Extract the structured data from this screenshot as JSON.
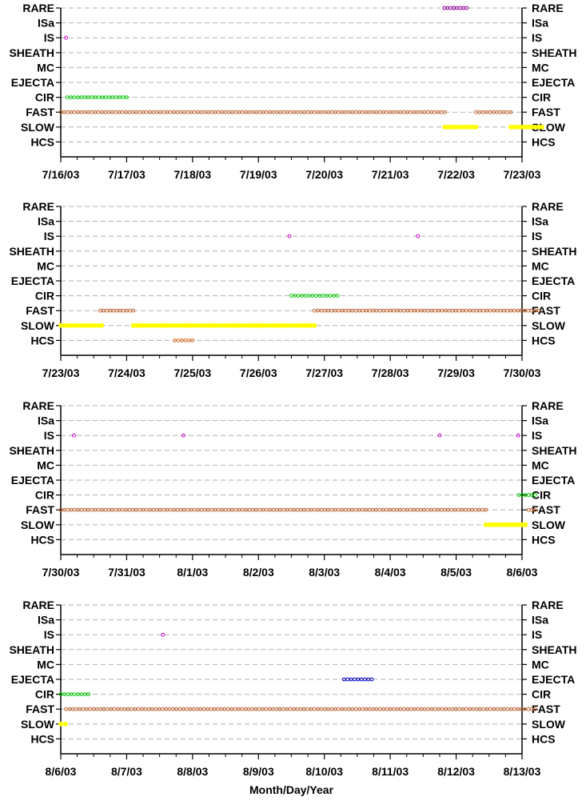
{
  "chart_data": {
    "type": "scatter",
    "categories": [
      "RARE",
      "ISa",
      "IS",
      "SHEATH",
      "MC",
      "EJECTA",
      "CIR",
      "FAST",
      "SLOW",
      "HCS"
    ],
    "xlabel": "Month/Day/Year",
    "colors": {
      "RARE": "#9400a0",
      "IS": "#cc00cc",
      "EJECTA": "#0000cc",
      "CIR": "#00cc00",
      "FAST": "#c0602a",
      "SLOW": "#ffff00",
      "HCS": "#e07020",
      "grid": "#b0b0b0"
    },
    "panels": [
      {
        "x_ticks": [
          "7/16/03",
          "7/17/03",
          "7/18/03",
          "7/19/03",
          "7/20/03",
          "7/21/03",
          "7/22/03",
          "7/23/03"
        ],
        "series": [
          {
            "category": "RARE",
            "ranges": [
              [
                5.82,
                6.16
              ]
            ]
          },
          {
            "category": "IS",
            "ranges": [
              [
                0.08,
                0.09
              ]
            ]
          },
          {
            "category": "CIR",
            "ranges": [
              [
                0.1,
                1.0
              ]
            ]
          },
          {
            "category": "FAST",
            "ranges": [
              [
                0.0,
                5.83
              ],
              [
                6.3,
                6.83
              ]
            ]
          },
          {
            "category": "SLOW",
            "ranges": [
              [
                5.83,
                6.3
              ],
              [
                6.83,
                7.3
              ]
            ]
          }
        ]
      },
      {
        "x_ticks": [
          "7/23/03",
          "7/24/03",
          "7/25/03",
          "7/26/03",
          "7/27/03",
          "7/28/03",
          "7/29/03",
          "7/30/03"
        ],
        "series": [
          {
            "category": "IS",
            "ranges": [
              [
                3.47,
                3.48
              ],
              [
                5.42,
                5.43
              ]
            ]
          },
          {
            "category": "CIR",
            "ranges": [
              [
                3.5,
                4.2
              ]
            ]
          },
          {
            "category": "FAST",
            "ranges": [
              [
                0.6,
                1.1
              ],
              [
                3.85,
                7.25
              ]
            ]
          },
          {
            "category": "SLOW",
            "ranges": [
              [
                0.0,
                0.62
              ],
              [
                1.1,
                3.85
              ]
            ]
          },
          {
            "category": "HCS",
            "ranges": [
              [
                1.73,
                2.0
              ]
            ]
          }
        ]
      },
      {
        "x_ticks": [
          "7/30/03",
          "7/31/03",
          "8/1/03",
          "8/2/03",
          "8/3/03",
          "8/4/03",
          "8/5/03",
          "8/6/03"
        ],
        "series": [
          {
            "category": "IS",
            "ranges": [
              [
                0.2,
                0.21
              ],
              [
                1.86,
                1.87
              ],
              [
                5.75,
                5.76
              ],
              [
                6.94,
                6.95
              ]
            ]
          },
          {
            "category": "CIR",
            "ranges": [
              [
                6.95,
                7.2
              ]
            ]
          },
          {
            "category": "FAST",
            "ranges": [
              [
                0.0,
                6.45
              ],
              [
                7.1,
                7.2
              ]
            ]
          },
          {
            "category": "SLOW",
            "ranges": [
              [
                6.45,
                7.05
              ]
            ]
          }
        ]
      },
      {
        "x_ticks": [
          "8/6/03",
          "8/7/03",
          "8/8/03",
          "8/9/03",
          "8/10/03",
          "8/11/03",
          "8/12/03",
          "8/13/03"
        ],
        "series": [
          {
            "category": "IS",
            "ranges": [
              [
                1.55,
                1.56
              ]
            ]
          },
          {
            "category": "EJECTA",
            "ranges": [
              [
                4.3,
                4.72
              ]
            ]
          },
          {
            "category": "CIR",
            "ranges": [
              [
                0.0,
                0.42
              ]
            ]
          },
          {
            "category": "FAST",
            "ranges": [
              [
                0.08,
                7.2
              ]
            ]
          },
          {
            "category": "SLOW",
            "ranges": [
              [
                0.0,
                0.07
              ]
            ]
          }
        ]
      }
    ]
  }
}
